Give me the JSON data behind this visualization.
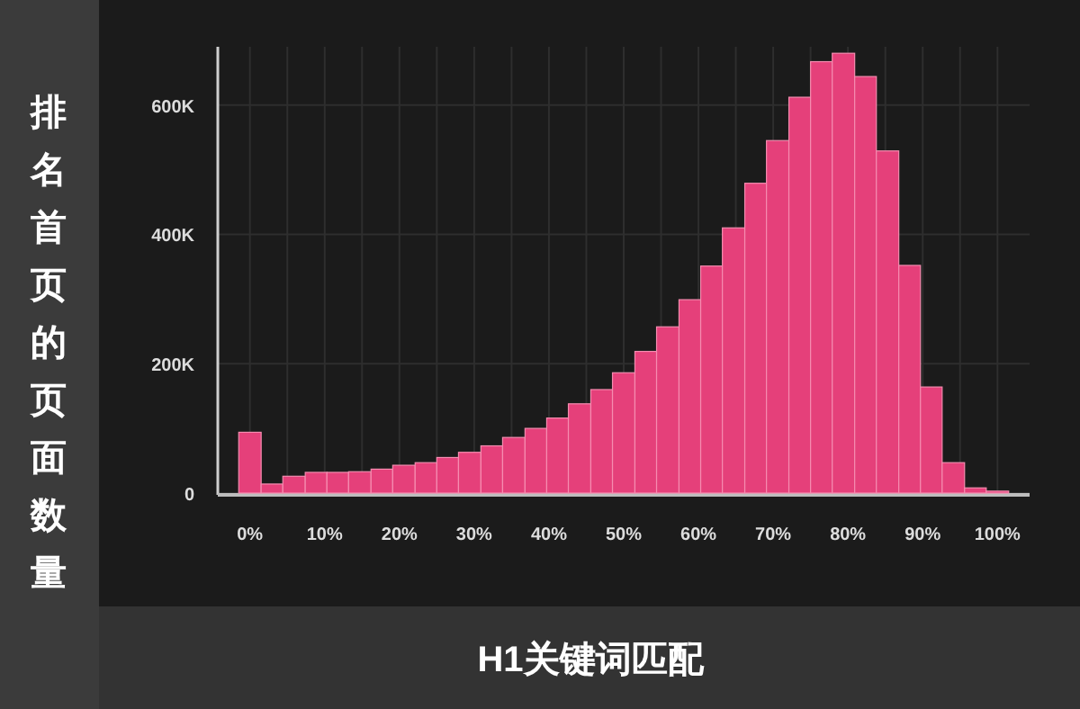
{
  "chart_data": {
    "type": "histogram",
    "xlabel": "H1关键词匹配",
    "ylabel": "排名首页的页面数量",
    "color": "#e5407a",
    "bins": [
      -1.5,
      1.5,
      4.4,
      7.4,
      10.3,
      13.2,
      16.2,
      19.1,
      22.1,
      25.0,
      27.9,
      30.9,
      33.8,
      36.8,
      39.7,
      42.6,
      45.6,
      48.5,
      51.5,
      54.4,
      57.4,
      60.3,
      63.2,
      66.2,
      69.1,
      72.1,
      75.0,
      77.9,
      80.9,
      83.8,
      86.8,
      89.7,
      92.6,
      95.6,
      98.5,
      101.5
    ],
    "values": [
      94000,
      14000,
      26000,
      32000,
      32000,
      33000,
      37000,
      43000,
      47000,
      55000,
      63000,
      73000,
      86000,
      100000,
      116000,
      138000,
      160000,
      186000,
      219000,
      257000,
      299000,
      351000,
      410000,
      479000,
      545000,
      612000,
      667000,
      680000,
      644000,
      529000,
      352000,
      164000,
      47000,
      8000,
      3000
    ],
    "xlim": [
      -4.3,
      104.3
    ],
    "xticks": [
      {
        "value": 0,
        "label": "0%"
      },
      {
        "value": 5,
        "label": null
      },
      {
        "value": 10,
        "label": "10%"
      },
      {
        "value": 15,
        "label": null
      },
      {
        "value": 20,
        "label": "20%"
      },
      {
        "value": 25,
        "label": null
      },
      {
        "value": 30,
        "label": "30%"
      },
      {
        "value": 35,
        "label": null
      },
      {
        "value": 40,
        "label": "40%"
      },
      {
        "value": 45,
        "label": null
      },
      {
        "value": 50,
        "label": "50%"
      },
      {
        "value": 55,
        "label": null
      },
      {
        "value": 60,
        "label": "60%"
      },
      {
        "value": 65,
        "label": null
      },
      {
        "value": 70,
        "label": "70%"
      },
      {
        "value": 75,
        "label": null
      },
      {
        "value": 80,
        "label": "80%"
      },
      {
        "value": 85,
        "label": null
      },
      {
        "value": 90,
        "label": "90%"
      },
      {
        "value": 95,
        "label": null
      },
      {
        "value": 100,
        "label": "100%"
      }
    ],
    "ylim": [
      0,
      690000
    ],
    "yticks": [
      {
        "value": 0,
        "label": "0"
      },
      {
        "value": 200000,
        "label": "200K"
      },
      {
        "value": 400000,
        "label": "400K"
      },
      {
        "value": 600000,
        "label": "600K"
      }
    ],
    "grid": true
  }
}
